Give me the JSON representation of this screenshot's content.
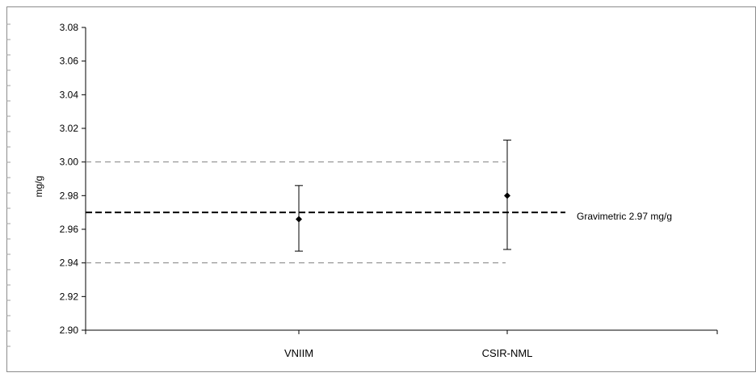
{
  "chart_data": {
    "type": "scatter",
    "title": "",
    "xlabel": "",
    "ylabel": "mg/g",
    "ylim": [
      2.9,
      3.08
    ],
    "yticks": [
      "2.90",
      "2.92",
      "2.94",
      "2.96",
      "2.98",
      "3.00",
      "3.02",
      "3.04",
      "3.06",
      "3.08"
    ],
    "categories": [
      "VNIIM",
      "CSIR-NML"
    ],
    "points": [
      {
        "label": "VNIIM",
        "value": 2.966,
        "err_low": 2.947,
        "err_high": 2.986
      },
      {
        "label": "CSIR-NML",
        "value": 2.98,
        "err_low": 2.948,
        "err_high": 3.013
      }
    ],
    "reference": {
      "value": 2.97,
      "label": "Gravimetric 2.97 mg/g"
    },
    "reference_band": [
      2.94,
      3.0
    ],
    "grid": false,
    "legend": "none",
    "colors": {
      "marker": "#000000",
      "reference": "#000000",
      "band": "#808080"
    }
  }
}
